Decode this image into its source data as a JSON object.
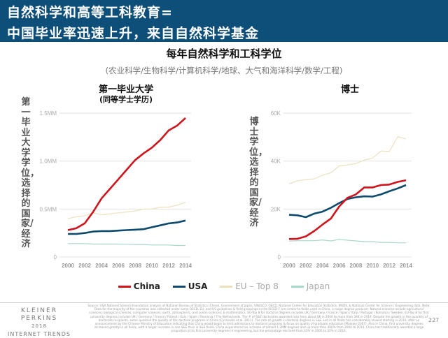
{
  "header": {
    "line1": "自然科学和高等工科教育=",
    "line2": "中国毕业率迅速上升，来自自然科学基金"
  },
  "main_title": "每年自然科学和工科学位",
  "subtitle": "(农业科学/生物科学/计算机科学/地球、大气和海洋科学/数学/工程)",
  "colors": {
    "header_bg": "#0d4f79",
    "China": "#d0141b",
    "USA": "#0d4a6e",
    "EU – Top 8": "#eedfbd",
    "Japan": "#a8d8c6"
  },
  "chart_data": [
    {
      "type": "line",
      "title": "第一毕业大学",
      "subtitle": "(同等学士学历)",
      "ylabel": "第一毕业大学学位，选择的国家/经济",
      "x": [
        2000,
        2001,
        2002,
        2003,
        2004,
        2005,
        2006,
        2007,
        2008,
        2009,
        2010,
        2011,
        2012,
        2013,
        2014
      ],
      "xticks": [
        "2000",
        "2002",
        "2004",
        "2006",
        "2008",
        "2010",
        "2012",
        "2014"
      ],
      "yticks": [
        "0",
        "0.5MM",
        "1.0MM",
        "1.5MM"
      ],
      "ylim": [
        0,
        1500000
      ],
      "grid": true,
      "series": [
        {
          "name": "EU – Top 8",
          "values": [
            400000,
            420000,
            430000,
            460000,
            440000,
            450000,
            460000,
            470000,
            480000,
            500000,
            500000,
            520000,
            520000,
            540000,
            570000
          ]
        },
        {
          "name": "Japan",
          "values": [
            140000,
            140000,
            140000,
            135000,
            135000,
            135000,
            135000,
            133000,
            130000,
            130000,
            125000,
            125000,
            125000,
            120000,
            120000
          ]
        },
        {
          "name": "USA",
          "values": [
            240000,
            240000,
            250000,
            265000,
            270000,
            270000,
            275000,
            280000,
            285000,
            290000,
            310000,
            330000,
            350000,
            360000,
            380000
          ]
        },
        {
          "name": "China",
          "values": [
            280000,
            300000,
            350000,
            470000,
            610000,
            710000,
            810000,
            910000,
            1010000,
            1080000,
            1140000,
            1220000,
            1320000,
            1370000,
            1450000
          ]
        }
      ]
    },
    {
      "type": "line",
      "title": "博士",
      "ylabel": "博士学位，选择的国家/经济",
      "x": [
        2000,
        2001,
        2002,
        2003,
        2004,
        2005,
        2006,
        2007,
        2008,
        2009,
        2010,
        2011,
        2012,
        2013,
        2014
      ],
      "xticks": [
        "2000",
        "2002",
        "2004",
        "2006",
        "2008",
        "2010",
        "2012",
        "2014"
      ],
      "yticks": [
        "0",
        "20K",
        "40K",
        "60K"
      ],
      "ylim": [
        0,
        60000
      ],
      "grid": true,
      "series": [
        {
          "name": "EU – Top 8",
          "values": [
            30500,
            31800,
            32300,
            32600,
            34100,
            35100,
            38000,
            38400,
            39000,
            40400,
            41300,
            44200,
            44000,
            50100,
            49300
          ]
        },
        {
          "name": "Japan",
          "values": [
            6600,
            6800,
            6800,
            6800,
            7100,
            6700,
            7300,
            7000,
            6700,
            6400,
            6400,
            6100,
            6100,
            5900,
            5900
          ]
        },
        {
          "name": "USA",
          "values": [
            17600,
            17400,
            16600,
            18100,
            18900,
            20500,
            22500,
            24200,
            24900,
            25300,
            25200,
            26100,
            27400,
            28600,
            30000
          ]
        },
        {
          "name": "China",
          "values": [
            7500,
            7600,
            8600,
            10800,
            13500,
            16000,
            21100,
            24700,
            26100,
            29000,
            29000,
            30000,
            30200,
            31300,
            32000
          ]
        }
      ]
    }
  ],
  "legend": [
    "China",
    "USA",
    "EU – Top 8",
    "Japan"
  ],
  "footer": {
    "logo_line1": "KLEINER PERKINS",
    "logo_line2": "2018",
    "logo_line3": "INTERNET TRENDS",
    "source": "Source: USA National Science Foundation analysis of National Bureau of Statistics (China), Government of Japan, UNESCO, OECD, National Center for Education Statistics, IPEDS, & National Center for Science / Engineering data. Note: Data for the majority of the countries was collected under same OECD, EU, and US guidelines & field groupings in the ISCED-F are similar to fields used in China, a major degree producer. Natural sciences include agricultural sciences; biological sciences; computer sciences; earth, atmospheric, and ocean sciences; & mathematics. EU-Top 8 for doctoral degrees includes UK / Germany / France / Spain / Italy / Portugal / Romania / Sweden. EU-Top 8 for first university degrees includes UK / Germany / France / Poland / Italy / Spain / Romania / The Netherlands. The # of S&E doctorates awarded rose from about 8K in 2000 to more than 34K in 2014. Despite the growth in the quantity of doctorate recipients, some question the quality of the doctoral programs in China (Cyranoski et al. 2011). The rate of growth in doctoral degrees in S&E and in all fields has considerably slowed starting in 2010, after an announcement by the Chinese Ministry of Education indicating that China would begin to limit admissions to doctoral programs & focus on quality of graduate education (Mooney 2007). Also in China, first university degrees increased greatly in all fields, with a larger increase in non-S&E than in S&E fields. China experienced an increase of almost 1.2MM degrees and up more than 400% from 2000 to 2014. China has traditionally awarded a large proportion of its first university degrees in engineering, but the percentage declined from 43% in 2000 to 33% in 2014.",
    "page_number": "227"
  }
}
